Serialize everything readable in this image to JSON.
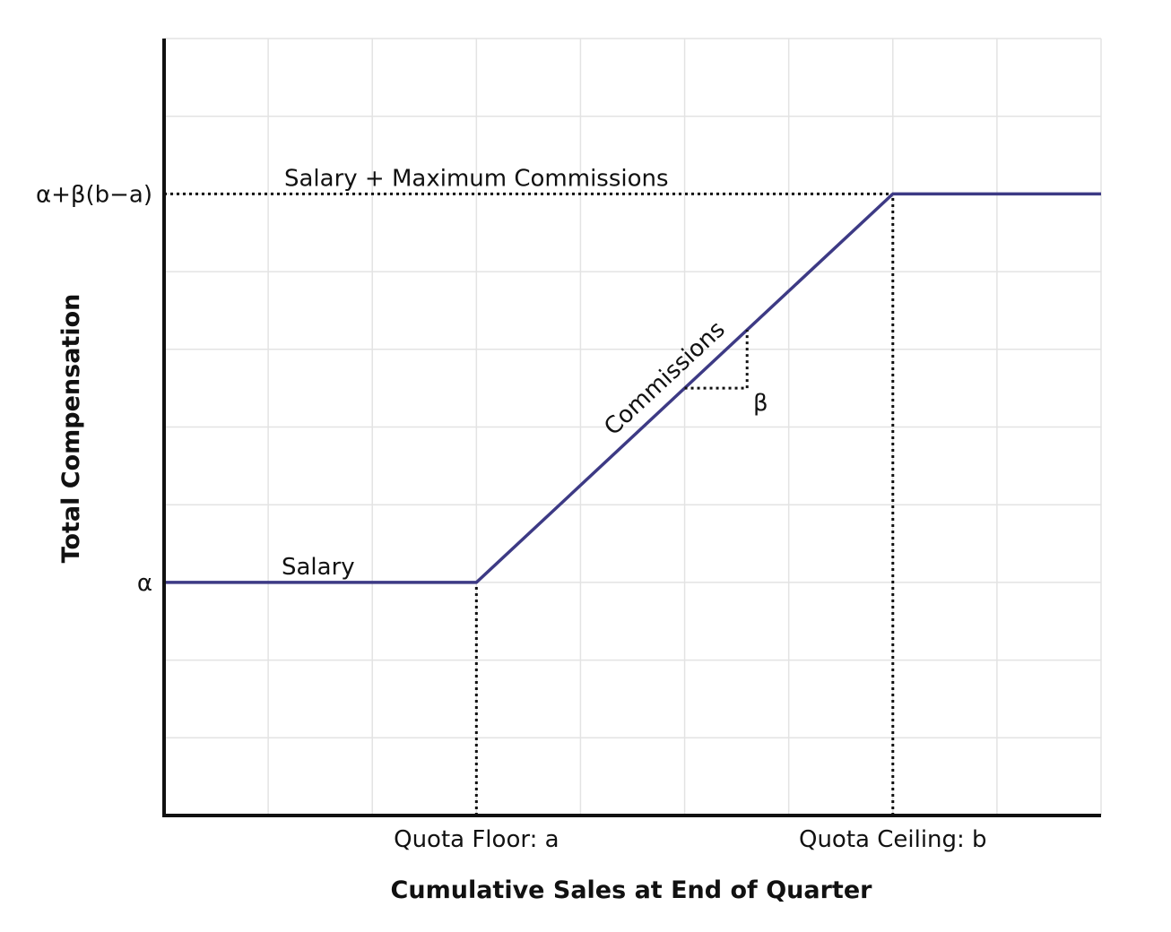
{
  "chart_data": {
    "type": "line",
    "title": "",
    "xlabel": "Cumulative Sales at End of Quarter",
    "ylabel": "Total Compensation",
    "grid": true,
    "xlim": [
      0,
      9
    ],
    "ylim": [
      0,
      10
    ],
    "x_ticks": [
      {
        "value": 3,
        "label": "Quota Floor: a"
      },
      {
        "value": 7,
        "label": "Quota Ceiling: b"
      }
    ],
    "y_ticks": [
      {
        "value": 3,
        "label": "α"
      },
      {
        "value": 8,
        "label": "α+β(b−a)"
      }
    ],
    "series": [
      {
        "color": "#3d3a85",
        "x": [
          0,
          3,
          7,
          9
        ],
        "y": [
          3,
          3,
          8,
          8
        ]
      }
    ],
    "reference_lines": [
      {
        "from": [
          0,
          8
        ],
        "to": [
          7,
          8
        ]
      },
      {
        "from": [
          3,
          0
        ],
        "to": [
          3,
          3
        ]
      },
      {
        "from": [
          7,
          0
        ],
        "to": [
          7,
          8
        ]
      }
    ],
    "annotations": {
      "salary": "Salary",
      "max_commissions": "Salary + Maximum Commissions",
      "commissions": "Commissions",
      "slope": "β"
    },
    "slope_triangle": {
      "x": [
        5.0,
        5.6
      ],
      "y": [
        5.5,
        6.25
      ]
    }
  }
}
